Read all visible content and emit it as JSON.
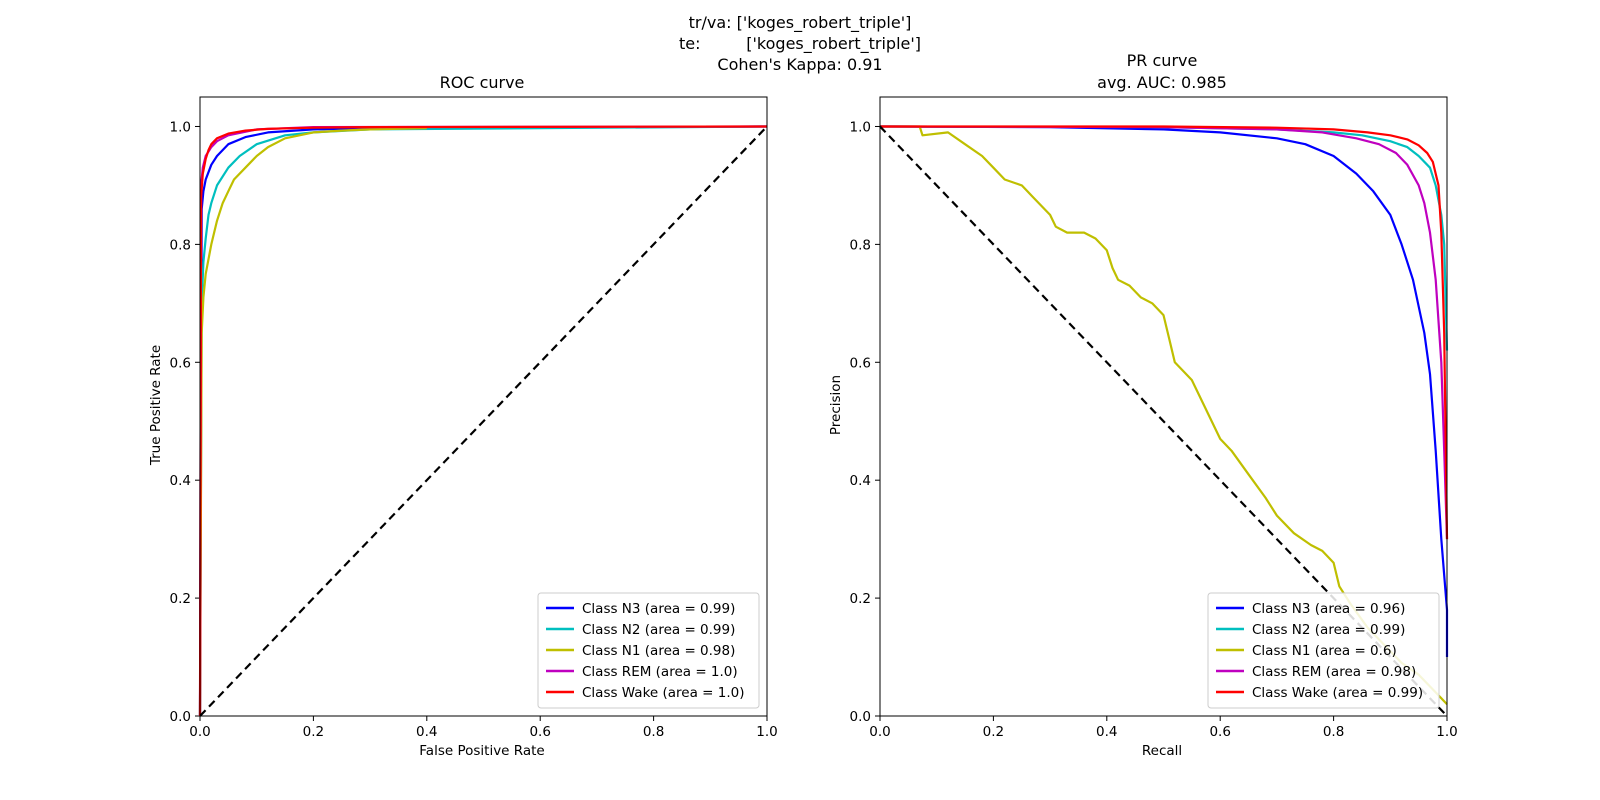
{
  "suptitle": {
    "line1": "tr/va: ['koges_robert_triple']",
    "line2": "te:         ['koges_robert_triple']",
    "line3": "Cohen's Kappa: 0.91"
  },
  "chart_data": [
    {
      "type": "line",
      "title": "ROC curve",
      "xlabel": "False Positive Rate",
      "ylabel": "True Positive Rate",
      "xlim": [
        0,
        1
      ],
      "ylim": [
        0,
        1.05
      ],
      "xticks": [
        "0.0",
        "0.2",
        "0.4",
        "0.6",
        "0.8",
        "1.0"
      ],
      "yticks": [
        "0.0",
        "0.2",
        "0.4",
        "0.6",
        "0.8",
        "1.0"
      ],
      "legend_position": "lower-right",
      "series": [
        {
          "name": "Class N3 (area = 0.99)",
          "color": "#0000ff",
          "x": [
            0,
            0.003,
            0.006,
            0.01,
            0.02,
            0.03,
            0.05,
            0.08,
            0.12,
            0.2,
            0.3,
            0.5,
            1.0
          ],
          "y": [
            0,
            0.86,
            0.89,
            0.91,
            0.935,
            0.95,
            0.97,
            0.982,
            0.99,
            0.995,
            0.997,
            0.998,
            1.0
          ]
        },
        {
          "name": "Class N2 (area = 0.99)",
          "color": "#00bfbf",
          "x": [
            0,
            0.003,
            0.006,
            0.01,
            0.015,
            0.02,
            0.03,
            0.05,
            0.07,
            0.1,
            0.15,
            0.2,
            0.3,
            1.0
          ],
          "y": [
            0,
            0.7,
            0.77,
            0.81,
            0.85,
            0.87,
            0.9,
            0.93,
            0.95,
            0.97,
            0.985,
            0.99,
            0.995,
            1.0
          ]
        },
        {
          "name": "Class N1 (area = 0.98)",
          "color": "#bfbf00",
          "x": [
            0,
            0.003,
            0.006,
            0.01,
            0.02,
            0.03,
            0.04,
            0.05,
            0.06,
            0.08,
            0.1,
            0.12,
            0.15,
            0.2,
            0.25,
            0.3,
            0.4
          ],
          "y": [
            0,
            0.65,
            0.71,
            0.75,
            0.8,
            0.84,
            0.87,
            0.89,
            0.91,
            0.93,
            0.95,
            0.965,
            0.98,
            0.99,
            0.993,
            0.995,
            0.997
          ]
        },
        {
          "name": "Class REM (area = 1.0)",
          "color": "#bf00bf",
          "x": [
            0,
            0.002,
            0.005,
            0.01,
            0.02,
            0.03,
            0.05,
            0.1,
            0.2,
            1.0
          ],
          "y": [
            0,
            0.9,
            0.93,
            0.95,
            0.965,
            0.975,
            0.985,
            0.995,
            0.999,
            1.0
          ]
        },
        {
          "name": "Class Wake (area = 1.0)",
          "color": "#ff0000",
          "x": [
            0,
            0.002,
            0.005,
            0.01,
            0.015,
            0.02,
            0.03,
            0.05,
            0.08,
            0.12,
            0.2,
            0.3,
            1.0
          ],
          "y": [
            0,
            0.88,
            0.92,
            0.945,
            0.96,
            0.97,
            0.98,
            0.988,
            0.993,
            0.996,
            0.998,
            0.999,
            1.0
          ]
        }
      ],
      "reference_line": {
        "x": [
          0,
          1
        ],
        "y": [
          0,
          1
        ],
        "color": "#000000",
        "style": "dashed"
      }
    },
    {
      "type": "line",
      "title": "PR curve",
      "subtitle": "avg. AUC: 0.985",
      "xlabel": "Recall",
      "ylabel": "Precision",
      "xlim": [
        0,
        1
      ],
      "ylim": [
        0,
        1.05
      ],
      "xticks": [
        "0.0",
        "0.2",
        "0.4",
        "0.6",
        "0.8",
        "1.0"
      ],
      "yticks": [
        "0.0",
        "0.2",
        "0.4",
        "0.6",
        "0.8",
        "1.0"
      ],
      "legend_position": "lower-right",
      "series": [
        {
          "name": "Class N3 (area = 0.96)",
          "color": "#0000ff",
          "x": [
            0,
            0.3,
            0.5,
            0.6,
            0.7,
            0.75,
            0.8,
            0.84,
            0.87,
            0.9,
            0.92,
            0.94,
            0.96,
            0.97,
            0.98,
            0.99,
            1.0,
            1.0
          ],
          "y": [
            1.0,
            0.999,
            0.995,
            0.99,
            0.98,
            0.97,
            0.95,
            0.92,
            0.89,
            0.85,
            0.8,
            0.74,
            0.65,
            0.58,
            0.45,
            0.3,
            0.18,
            0.1
          ]
        },
        {
          "name": "Class N2 (area = 0.99)",
          "color": "#00bfbf",
          "x": [
            0,
            0.5,
            0.7,
            0.8,
            0.85,
            0.9,
            0.93,
            0.95,
            0.97,
            0.98,
            0.99,
            0.995,
            1.0
          ],
          "y": [
            1.0,
            0.999,
            0.995,
            0.99,
            0.985,
            0.975,
            0.965,
            0.95,
            0.93,
            0.9,
            0.85,
            0.8,
            0.62
          ]
        },
        {
          "name": "Class N1 (area = 0.6)",
          "color": "#bfbf00",
          "x": [
            0.0,
            0.07,
            0.075,
            0.12,
            0.15,
            0.18,
            0.2,
            0.22,
            0.25,
            0.27,
            0.3,
            0.31,
            0.33,
            0.36,
            0.38,
            0.4,
            0.41,
            0.42,
            0.44,
            0.46,
            0.48,
            0.5,
            0.51,
            0.52,
            0.55,
            0.57,
            0.6,
            0.62,
            0.65,
            0.68,
            0.7,
            0.73,
            0.76,
            0.78,
            0.8,
            0.81,
            0.83,
            0.86,
            0.89,
            0.92,
            0.95,
            0.98,
            1.0
          ],
          "y": [
            1.0,
            1.0,
            0.985,
            0.99,
            0.97,
            0.95,
            0.93,
            0.91,
            0.9,
            0.88,
            0.85,
            0.83,
            0.82,
            0.82,
            0.81,
            0.79,
            0.76,
            0.74,
            0.73,
            0.71,
            0.7,
            0.68,
            0.64,
            0.6,
            0.57,
            0.53,
            0.47,
            0.45,
            0.41,
            0.37,
            0.34,
            0.31,
            0.29,
            0.28,
            0.26,
            0.22,
            0.19,
            0.15,
            0.12,
            0.09,
            0.07,
            0.04,
            0.02
          ]
        },
        {
          "name": "Class REM (area = 0.98)",
          "color": "#bf00bf",
          "x": [
            0,
            0.5,
            0.7,
            0.78,
            0.84,
            0.88,
            0.91,
            0.93,
            0.95,
            0.96,
            0.97,
            0.98,
            0.99,
            0.995,
            1.0
          ],
          "y": [
            1.0,
            0.999,
            0.995,
            0.99,
            0.98,
            0.97,
            0.955,
            0.935,
            0.9,
            0.87,
            0.82,
            0.74,
            0.6,
            0.45,
            0.3
          ]
        },
        {
          "name": "Class Wake (area = 0.99)",
          "color": "#ff0000",
          "x": [
            0,
            0.5,
            0.7,
            0.8,
            0.86,
            0.9,
            0.93,
            0.95,
            0.965,
            0.975,
            0.985,
            0.99,
            0.995,
            1.0
          ],
          "y": [
            1.0,
            1.0,
            0.998,
            0.995,
            0.99,
            0.985,
            0.978,
            0.968,
            0.955,
            0.94,
            0.9,
            0.82,
            0.65,
            0.3
          ]
        }
      ],
      "reference_line": {
        "x": [
          0,
          1
        ],
        "y": [
          1,
          0
        ],
        "color": "#000000",
        "style": "dashed"
      }
    }
  ]
}
